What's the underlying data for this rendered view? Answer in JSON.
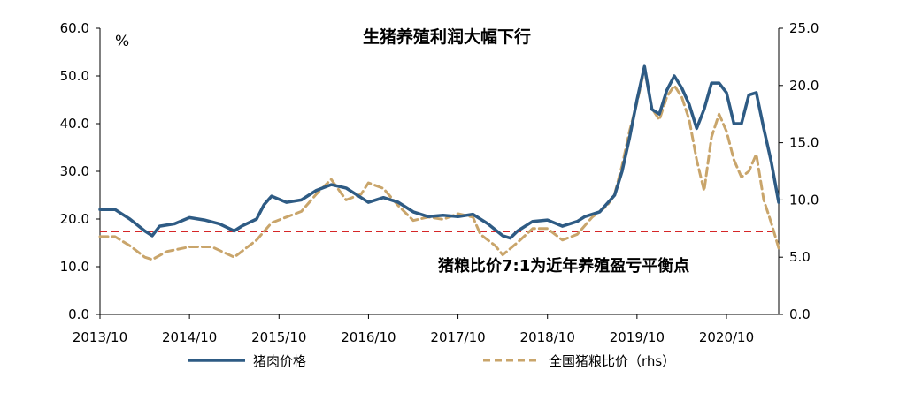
{
  "chart_data": {
    "type": "line",
    "title": "生猪养殖利润大幅下行",
    "left_unit": "%",
    "x_ticks": [
      "2013/10",
      "2014/10",
      "2015/10",
      "2016/10",
      "2017/10",
      "2018/10",
      "2019/10",
      "2020/10"
    ],
    "x_range": [
      "2013/10",
      "2021/05"
    ],
    "y_left": {
      "range": [
        0,
        60
      ],
      "ticks": [
        "0.0",
        "10.0",
        "20.0",
        "30.0",
        "40.0",
        "50.0",
        "60.0"
      ]
    },
    "y_right": {
      "range": [
        0,
        25
      ],
      "ticks": [
        "0.0",
        "5.0",
        "10.0",
        "15.0",
        "20.0",
        "25.0"
      ]
    },
    "grid": false,
    "legend_position": "bottom",
    "series": [
      {
        "name": "猪肉价格",
        "axis": "left",
        "color": "#2e5b84",
        "style": "solid",
        "points": [
          [
            "2013/10",
            22.0
          ],
          [
            "2013/12",
            22.0
          ],
          [
            "2014/02",
            20.0
          ],
          [
            "2014/04",
            17.5
          ],
          [
            "2014/05",
            16.5
          ],
          [
            "2014/06",
            18.5
          ],
          [
            "2014/08",
            19.0
          ],
          [
            "2014/10",
            20.3
          ],
          [
            "2014/12",
            19.8
          ],
          [
            "2015/02",
            19.0
          ],
          [
            "2015/04",
            17.5
          ],
          [
            "2015/05",
            18.5
          ],
          [
            "2015/07",
            20.0
          ],
          [
            "2015/08",
            23.0
          ],
          [
            "2015/09",
            24.8
          ],
          [
            "2015/11",
            23.5
          ],
          [
            "2016/01",
            24.0
          ],
          [
            "2016/03",
            26.0
          ],
          [
            "2016/05",
            27.2
          ],
          [
            "2016/07",
            26.5
          ],
          [
            "2016/09",
            24.5
          ],
          [
            "2016/10",
            23.5
          ],
          [
            "2016/12",
            24.5
          ],
          [
            "2017/02",
            23.5
          ],
          [
            "2017/04",
            21.5
          ],
          [
            "2017/06",
            20.5
          ],
          [
            "2017/08",
            20.8
          ],
          [
            "2017/10",
            20.5
          ],
          [
            "2017/12",
            21.0
          ],
          [
            "2018/02",
            19.0
          ],
          [
            "2018/04",
            16.5
          ],
          [
            "2018/05",
            16.0
          ],
          [
            "2018/06",
            17.5
          ],
          [
            "2018/08",
            19.5
          ],
          [
            "2018/10",
            19.8
          ],
          [
            "2018/12",
            18.5
          ],
          [
            "2019/02",
            19.5
          ],
          [
            "2019/03",
            20.5
          ],
          [
            "2019/05",
            21.5
          ],
          [
            "2019/07",
            25.0
          ],
          [
            "2019/08",
            30.0
          ],
          [
            "2019/09",
            37.0
          ],
          [
            "2019/10",
            45.0
          ],
          [
            "2019/11",
            52.0
          ],
          [
            "2019/12",
            43.0
          ],
          [
            "2020/01",
            42.0
          ],
          [
            "2020/02",
            47.0
          ],
          [
            "2020/03",
            50.0
          ],
          [
            "2020/04",
            47.5
          ],
          [
            "2020/05",
            44.0
          ],
          [
            "2020/06",
            39.0
          ],
          [
            "2020/07",
            43.0
          ],
          [
            "2020/08",
            48.5
          ],
          [
            "2020/09",
            48.5
          ],
          [
            "2020/10",
            46.5
          ],
          [
            "2020/11",
            40.0
          ],
          [
            "2020/12",
            40.0
          ],
          [
            "2021/01",
            46.0
          ],
          [
            "2021/02",
            46.5
          ],
          [
            "2021/03",
            39.0
          ],
          [
            "2021/04",
            32.0
          ],
          [
            "2021/05",
            23.5
          ]
        ]
      },
      {
        "name": "全国猪粮比价（rhs）",
        "axis": "right",
        "color": "#c9a56b",
        "style": "dashed",
        "points": [
          [
            "2013/10",
            6.8
          ],
          [
            "2013/12",
            6.8
          ],
          [
            "2014/02",
            6.0
          ],
          [
            "2014/04",
            5.0
          ],
          [
            "2014/05",
            4.8
          ],
          [
            "2014/07",
            5.5
          ],
          [
            "2014/10",
            5.9
          ],
          [
            "2015/01",
            5.9
          ],
          [
            "2015/04",
            5.0
          ],
          [
            "2015/07",
            6.5
          ],
          [
            "2015/09",
            8.0
          ],
          [
            "2015/11",
            8.5
          ],
          [
            "2016/01",
            9.0
          ],
          [
            "2016/03",
            10.5
          ],
          [
            "2016/05",
            11.8
          ],
          [
            "2016/07",
            10.0
          ],
          [
            "2016/09",
            10.5
          ],
          [
            "2016/10",
            11.5
          ],
          [
            "2016/12",
            11.0
          ],
          [
            "2017/02",
            9.5
          ],
          [
            "2017/04",
            8.2
          ],
          [
            "2017/06",
            8.5
          ],
          [
            "2017/08",
            8.3
          ],
          [
            "2017/10",
            8.8
          ],
          [
            "2017/12",
            8.5
          ],
          [
            "2018/01",
            7.0
          ],
          [
            "2018/03",
            6.0
          ],
          [
            "2018/04",
            5.2
          ],
          [
            "2018/06",
            6.3
          ],
          [
            "2018/08",
            7.5
          ],
          [
            "2018/10",
            7.5
          ],
          [
            "2018/12",
            6.5
          ],
          [
            "2019/02",
            7.0
          ],
          [
            "2019/04",
            8.5
          ],
          [
            "2019/06",
            9.5
          ],
          [
            "2019/07",
            10.5
          ],
          [
            "2019/08",
            13.0
          ],
          [
            "2019/09",
            16.0
          ],
          [
            "2019/10",
            18.5
          ],
          [
            "2019/11",
            21.5
          ],
          [
            "2019/12",
            18.0
          ],
          [
            "2020/01",
            17.0
          ],
          [
            "2020/02",
            19.0
          ],
          [
            "2020/03",
            20.0
          ],
          [
            "2020/04",
            19.0
          ],
          [
            "2020/05",
            17.0
          ],
          [
            "2020/06",
            13.5
          ],
          [
            "2020/07",
            10.8
          ],
          [
            "2020/08",
            15.5
          ],
          [
            "2020/09",
            17.5
          ],
          [
            "2020/10",
            16.0
          ],
          [
            "2020/11",
            13.5
          ],
          [
            "2020/12",
            12.0
          ],
          [
            "2021/01",
            12.5
          ],
          [
            "2021/02",
            14.0
          ],
          [
            "2021/03",
            10.0
          ],
          [
            "2021/04",
            8.0
          ],
          [
            "2021/05",
            5.8
          ]
        ]
      }
    ],
    "reference_line": {
      "axis": "right",
      "value": 7.25,
      "color": "#d62728",
      "style": "dashed"
    },
    "annotation": "猪粮比价7:1为近年养殖盈亏平衡点"
  }
}
